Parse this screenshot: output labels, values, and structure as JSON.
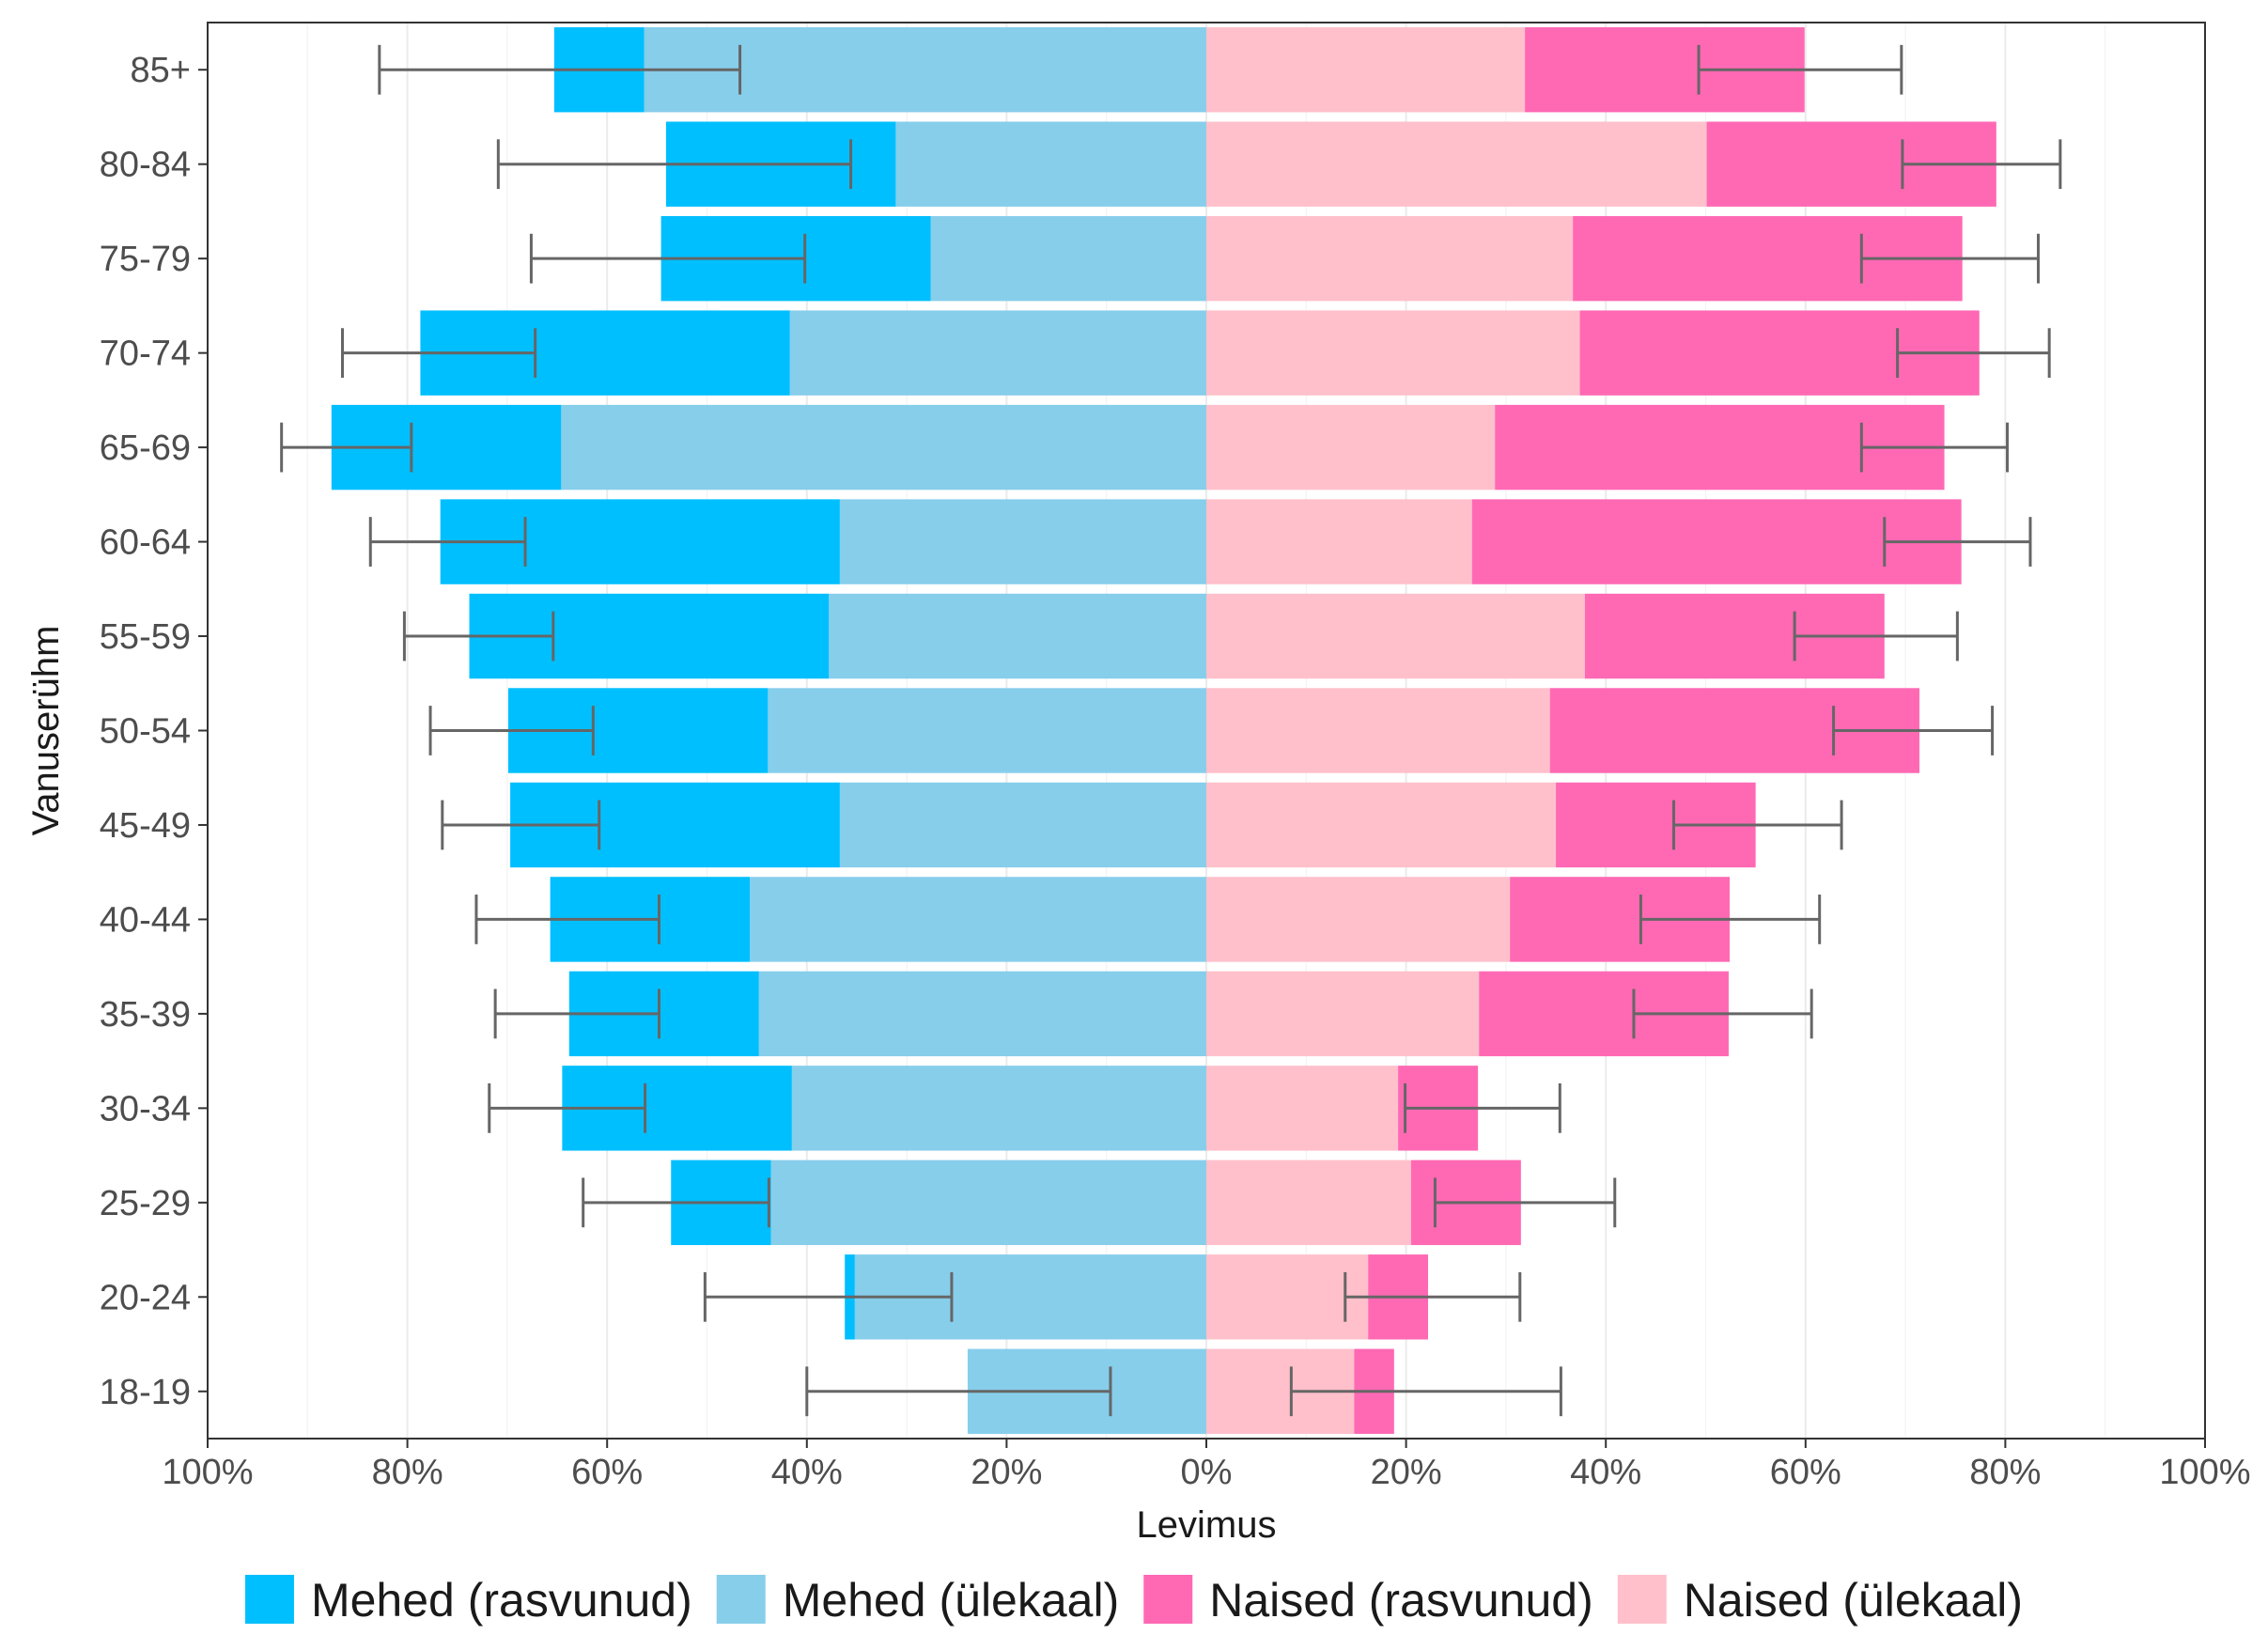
{
  "chart_data": {
    "type": "bar",
    "orientation": "horizontal",
    "layout": "population-pyramid",
    "xlabel": "Levimus",
    "ylabel": "Vanuserühm",
    "xlim": [
      -100,
      100
    ],
    "x_ticks": [
      -100,
      -80,
      -60,
      -40,
      -20,
      0,
      20,
      40,
      60,
      80,
      100
    ],
    "x_tick_labels": [
      "100%",
      "80%",
      "60%",
      "40%",
      "20%",
      "0%",
      "20%",
      "40%",
      "60%",
      "80%",
      "100%"
    ],
    "grid": true,
    "legend_position": "bottom",
    "categories": [
      "85+",
      "80-84",
      "75-79",
      "70-74",
      "65-69",
      "60-64",
      "55-59",
      "50-54",
      "45-49",
      "40-44",
      "35-39",
      "30-34",
      "25-29",
      "20-24",
      "18-19"
    ],
    "series": [
      {
        "name": "Mehed (rasvunud)",
        "side": "left",
        "color": "#00BFFF",
        "values": [
          9,
          23,
          27,
          37,
          23,
          40,
          36,
          26,
          33,
          20,
          19,
          23,
          10,
          1,
          0
        ],
        "total": [
          65.3,
          54.1,
          54.6,
          78.7,
          87.6,
          76.7,
          73.8,
          69.9,
          69.7,
          65.7,
          63.8,
          64.5,
          53.6,
          36.2,
          23.9
        ],
        "err_low": [
          46.7,
          35.6,
          40.2,
          67.2,
          79.6,
          68.2,
          65.4,
          61.4,
          60.8,
          54.8,
          54.8,
          56.2,
          43.8,
          25.5,
          9.6
        ],
        "err_high": [
          82.8,
          70.9,
          67.6,
          86.5,
          92.6,
          83.7,
          80.3,
          77.7,
          76.5,
          73.1,
          71.2,
          71.8,
          62.4,
          50.2,
          40.0
        ]
      },
      {
        "name": "Mehed (ülekaal)",
        "side": "left",
        "color": "#87CEEB",
        "values": [
          56.3,
          31.1,
          27.6,
          41.7,
          64.6,
          36.7,
          37.8,
          43.9,
          36.7,
          45.7,
          44.8,
          41.5,
          43.6,
          35.2,
          23.9
        ]
      },
      {
        "name": "Naised (rasvunud)",
        "side": "right",
        "color": "#FF69B4",
        "values": [
          28,
          29,
          39,
          40,
          45,
          49,
          30,
          37,
          20,
          22,
          25,
          8,
          11,
          6,
          4
        ],
        "total": [
          59.9,
          79.1,
          75.7,
          77.4,
          73.9,
          75.6,
          67.9,
          71.4,
          55.0,
          52.4,
          52.3,
          27.2,
          31.5,
          22.2,
          18.8
        ],
        "err_low": [
          49.3,
          69.7,
          65.6,
          69.2,
          65.6,
          67.9,
          58.9,
          62.8,
          46.8,
          43.5,
          42.8,
          19.9,
          22.9,
          13.9,
          8.5
        ],
        "err_high": [
          69.6,
          85.5,
          83.3,
          84.4,
          80.2,
          82.5,
          75.2,
          78.7,
          63.6,
          61.4,
          60.6,
          35.4,
          40.9,
          31.4,
          35.5
        ]
      },
      {
        "name": "Naised (ülekaal)",
        "side": "right",
        "color": "#FFC0CB",
        "values": [
          31.9,
          50.1,
          36.7,
          37.4,
          28.9,
          26.6,
          37.9,
          34.4,
          35.0,
          30.4,
          27.3,
          19.2,
          20.5,
          16.2,
          14.8
        ]
      }
    ]
  }
}
